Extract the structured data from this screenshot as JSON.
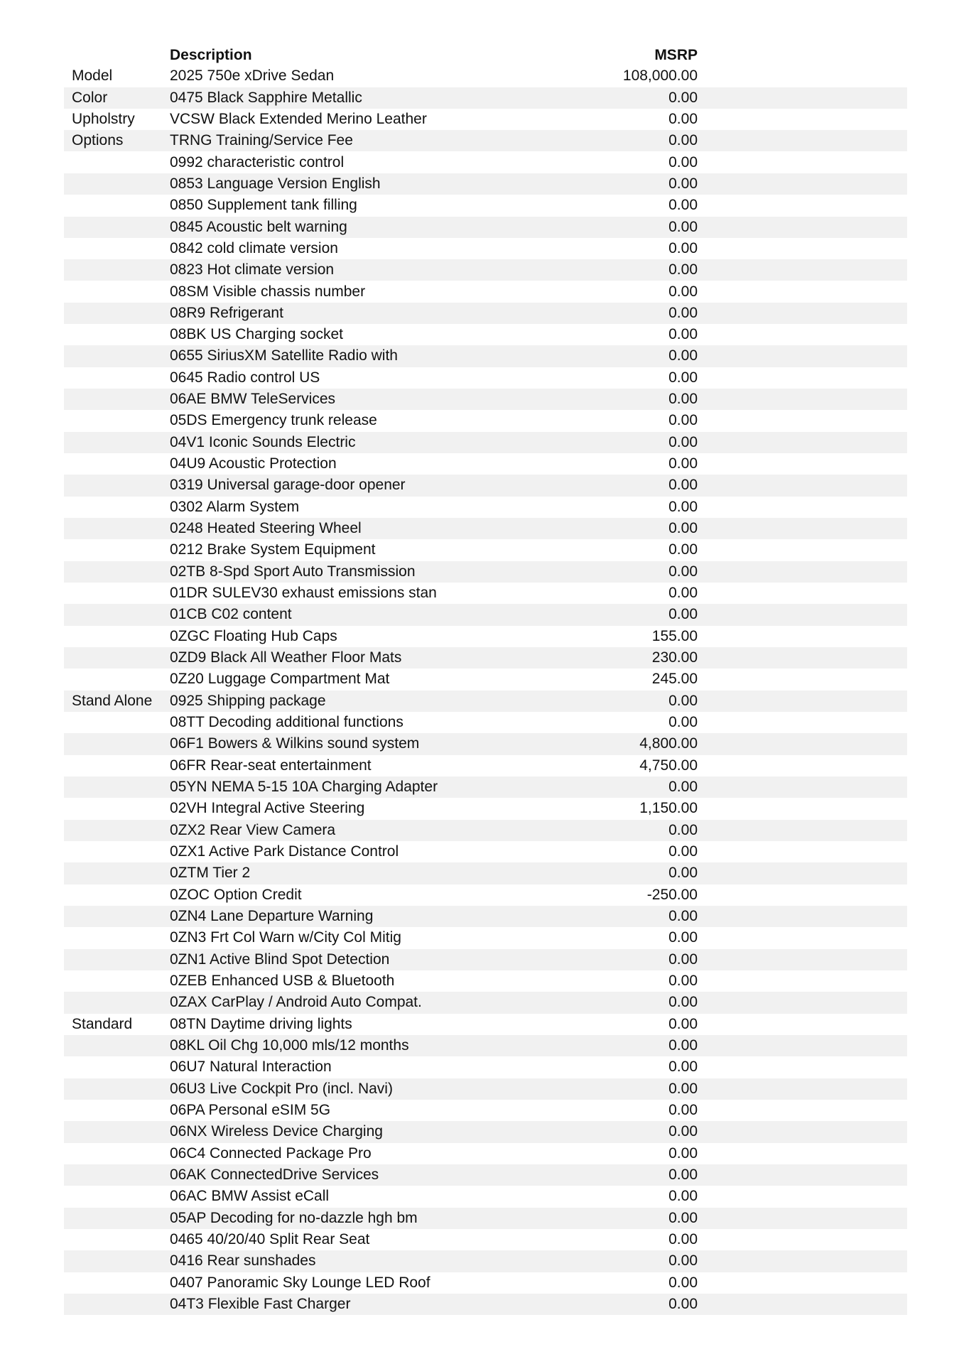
{
  "table": {
    "header": {
      "description": "Description",
      "msrp": "MSRP"
    },
    "rows": [
      {
        "category": "Model",
        "description": "2025 750e xDrive Sedan",
        "msrp": "108,000.00"
      },
      {
        "category": "Color",
        "description": "0475 Black Sapphire Metallic",
        "msrp": "0.00"
      },
      {
        "category": "Upholstry",
        "description": "VCSW Black Extended Merino Leather",
        "msrp": "0.00"
      },
      {
        "category": "Options",
        "description": "TRNG Training/Service Fee",
        "msrp": "0.00"
      },
      {
        "description": "0992 characteristic control",
        "msrp": "0.00"
      },
      {
        "description": "0853 Language Version English",
        "msrp": "0.00"
      },
      {
        "description": "0850 Supplement tank filling",
        "msrp": "0.00"
      },
      {
        "description": "0845 Acoustic belt warning",
        "msrp": "0.00"
      },
      {
        "description": "0842 cold climate version",
        "msrp": "0.00"
      },
      {
        "description": "0823 Hot climate version",
        "msrp": "0.00"
      },
      {
        "description": "08SM Visible chassis number",
        "msrp": "0.00"
      },
      {
        "description": "08R9 Refrigerant",
        "msrp": "0.00"
      },
      {
        "description": "08BK US Charging socket",
        "msrp": "0.00"
      },
      {
        "description": "0655 SiriusXM Satellite Radio with",
        "msrp": "0.00"
      },
      {
        "description": "0645 Radio control US",
        "msrp": "0.00"
      },
      {
        "description": "06AE BMW TeleServices",
        "msrp": "0.00"
      },
      {
        "description": "05DS Emergency trunk release",
        "msrp": "0.00"
      },
      {
        "description": "04V1 Iconic Sounds Electric",
        "msrp": "0.00"
      },
      {
        "description": "04U9 Acoustic Protection",
        "msrp": "0.00"
      },
      {
        "description": "0319 Universal garage-door opener",
        "msrp": "0.00"
      },
      {
        "description": "0302 Alarm System",
        "msrp": "0.00"
      },
      {
        "description": "0248 Heated Steering Wheel",
        "msrp": "0.00"
      },
      {
        "description": "0212 Brake System Equipment",
        "msrp": "0.00"
      },
      {
        "description": "02TB 8-Spd Sport Auto Transmission",
        "msrp": "0.00"
      },
      {
        "description": "01DR SULEV30 exhaust emissions stan",
        "msrp": "0.00"
      },
      {
        "description": "01CB C02 content",
        "msrp": "0.00"
      },
      {
        "description": "0ZGC Floating Hub Caps",
        "msrp": "155.00"
      },
      {
        "description": "0ZD9 Black All Weather Floor Mats",
        "msrp": "230.00"
      },
      {
        "description": "0Z20 Luggage Compartment Mat",
        "msrp": "245.00"
      },
      {
        "category": "Stand Alone",
        "description": "0925 Shipping package",
        "msrp": "0.00"
      },
      {
        "description": "08TT Decoding additional functions",
        "msrp": "0.00"
      },
      {
        "description": "06F1 Bowers & Wilkins sound system",
        "msrp": "4,800.00"
      },
      {
        "description": "06FR Rear-seat entertainment",
        "msrp": "4,750.00"
      },
      {
        "description": "05YN NEMA 5-15 10A Charging Adapter",
        "msrp": "0.00"
      },
      {
        "description": "02VH Integral Active Steering",
        "msrp": "1,150.00"
      },
      {
        "description": "0ZX2 Rear View Camera",
        "msrp": "0.00"
      },
      {
        "description": "0ZX1 Active Park Distance Control",
        "msrp": "0.00"
      },
      {
        "description": "0ZTM Tier 2",
        "msrp": "0.00"
      },
      {
        "description": "0ZOC Option Credit",
        "msrp": "-250.00"
      },
      {
        "description": "0ZN4 Lane Departure Warning",
        "msrp": "0.00"
      },
      {
        "description": "0ZN3 Frt Col Warn w/City Col Mitig",
        "msrp": "0.00"
      },
      {
        "description": "0ZN1 Active Blind Spot Detection",
        "msrp": "0.00"
      },
      {
        "description": "0ZEB Enhanced USB & Bluetooth",
        "msrp": "0.00"
      },
      {
        "description": "0ZAX CarPlay / Android Auto Compat.",
        "msrp": "0.00"
      },
      {
        "category": "Standard",
        "description": "08TN Daytime driving lights",
        "msrp": "0.00"
      },
      {
        "description": "08KL Oil Chg 10,000 mls/12 months",
        "msrp": "0.00"
      },
      {
        "description": "06U7 Natural Interaction",
        "msrp": "0.00"
      },
      {
        "description": "06U3 Live Cockpit Pro (incl. Navi)",
        "msrp": "0.00"
      },
      {
        "description": "06PA Personal eSIM 5G",
        "msrp": "0.00"
      },
      {
        "description": "06NX Wireless Device Charging",
        "msrp": "0.00"
      },
      {
        "description": "06C4 Connected Package Pro",
        "msrp": "0.00"
      },
      {
        "description": "06AK ConnectedDrive Services",
        "msrp": "0.00"
      },
      {
        "description": "06AC BMW Assist eCall",
        "msrp": "0.00"
      },
      {
        "description": "05AP Decoding for no-dazzle hgh bm",
        "msrp": "0.00"
      },
      {
        "description": "0465 40/20/40 Split Rear Seat",
        "msrp": "0.00"
      },
      {
        "description": "0416 Rear sunshades",
        "msrp": "0.00"
      },
      {
        "description": "0407 Panoramic Sky Lounge LED Roof",
        "msrp": "0.00"
      },
      {
        "description": "04T3 Flexible Fast Charger",
        "msrp": "0.00"
      }
    ]
  }
}
